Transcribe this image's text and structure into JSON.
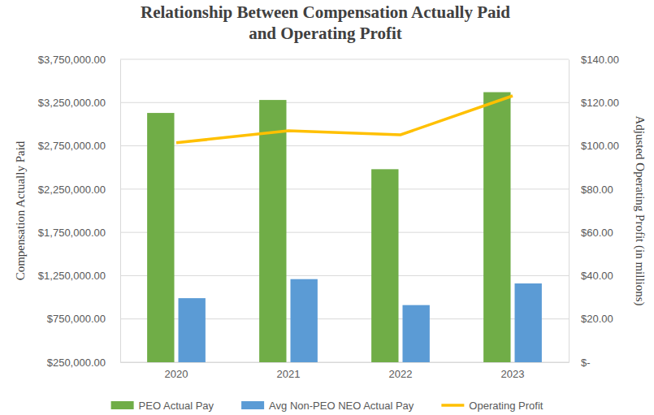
{
  "chart_data": {
    "type": "bar",
    "title": [
      "Relationship Between Compensation Actually Paid",
      "and Operating Profit"
    ],
    "y_label": "Compensation Actually Paid",
    "y2_label": "Adjusted Operating Profit (in millions)",
    "categories": [
      "2020",
      "2021",
      "2022",
      "2023"
    ],
    "series": [
      {
        "name": "PEO Actual Pay",
        "type": "bar",
        "color": "#70ad47",
        "values": [
          3130000,
          3280000,
          2480000,
          3370000
        ]
      },
      {
        "name": "Avg Non-PEO NEO Actual Pay",
        "type": "bar",
        "color": "#5b9bd5",
        "values": [
          990000,
          1210000,
          910000,
          1160000
        ]
      },
      {
        "name": "Operating Profit",
        "type": "line",
        "axis": "y2",
        "color": "#ffc000",
        "values": [
          101.4,
          107,
          105.1,
          123.1
        ]
      }
    ],
    "ylim": [
      250000,
      3750000
    ],
    "yticks": [
      {
        "value": 250000,
        "label": "$250,000.00"
      },
      {
        "value": 750000,
        "label": "$750,000.00"
      },
      {
        "value": 1250000,
        "label": "$1,250,000.00"
      },
      {
        "value": 1750000,
        "label": "$1,750,000.00"
      },
      {
        "value": 2250000,
        "label": "$2,250,000.00"
      },
      {
        "value": 2750000,
        "label": "$2,750,000.00"
      },
      {
        "value": 3250000,
        "label": "$3,250,000.00"
      },
      {
        "value": 3750000,
        "label": "$3,750,000.00"
      }
    ],
    "y2lim": [
      0,
      140
    ],
    "y2ticks": [
      {
        "value": 0,
        "label": "$-"
      },
      {
        "value": 20,
        "label": "$20.00"
      },
      {
        "value": 40,
        "label": "$40.00"
      },
      {
        "value": 60,
        "label": "$60.00"
      },
      {
        "value": 80,
        "label": "$80.00"
      },
      {
        "value": 100,
        "label": "$100.00"
      },
      {
        "value": 120,
        "label": "$120.00"
      },
      {
        "value": 140,
        "label": "$140.00"
      }
    ],
    "grid": true,
    "legend": "bottom"
  }
}
